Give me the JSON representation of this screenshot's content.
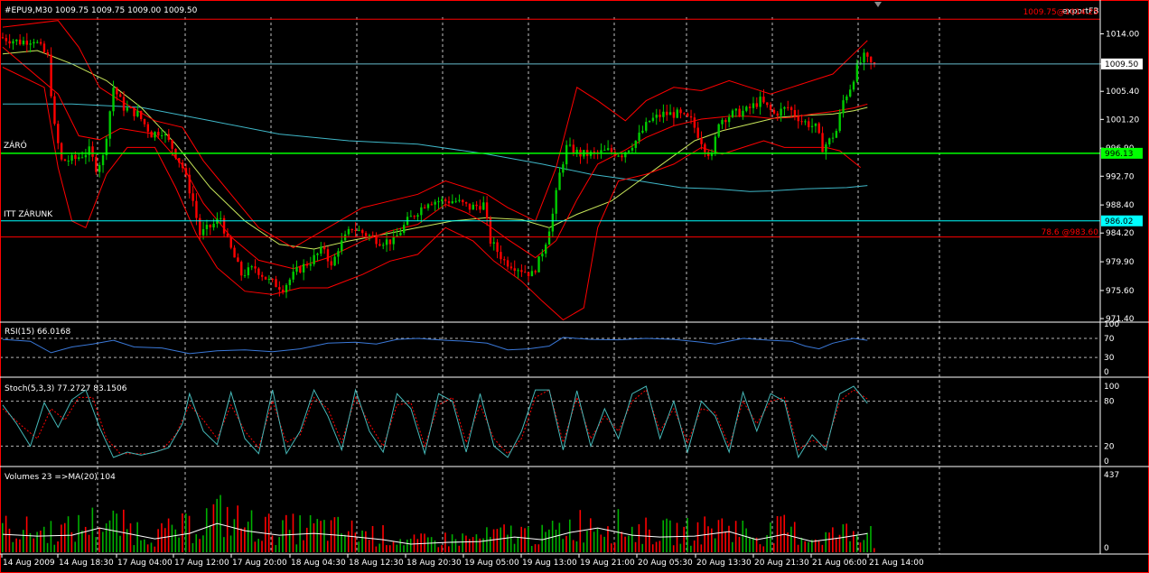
{
  "window": {
    "bg": "#000000",
    "frame": "#ff0000"
  },
  "colors": {
    "bull": "#00cc00",
    "bear": "#ff0000",
    "bb": "#ff0000",
    "ma_short": "#c8e65a",
    "ma_long": "#3fb7c8",
    "rsi": "#3a78d8",
    "stoch_main": "#45b8b8",
    "stoch_signal": "#ff0000",
    "vol_up": "#00b000",
    "vol_down": "#ff0000",
    "vol_ma": "#ffffff",
    "grid": "#ffffff",
    "axis_text": "#ffffff",
    "zaro_line": "#00ff00",
    "itt_line": "#00ffff",
    "fib_line": "#ff0000",
    "price_line": "#66bbcc",
    "top_line": "#ff0000"
  },
  "header": {
    "text": "#EPU9,M30  1009.75 1009.75 1009.00 1009.50"
  },
  "expert_label": "exportFB",
  "top_right_label": "1009.75@1014.25",
  "price_axis": {
    "ticks": [
      "1014.00",
      "1009.50",
      "1005.40",
      "1001.20",
      "996.90",
      "992.70",
      "988.40",
      "984.20",
      "979.90",
      "975.60",
      "971.40"
    ],
    "tick_values": [
      1014.0,
      1009.5,
      1005.4,
      1001.2,
      996.9,
      992.7,
      988.4,
      984.2,
      979.9,
      975.6,
      971.4
    ],
    "range": [
      971.0,
      1016.5
    ]
  },
  "current_price": {
    "label": "1009.50",
    "value": 1009.5
  },
  "levels": [
    {
      "id": "zaro",
      "name": "ZÁRÓ",
      "value": 996.13,
      "label": "996.13",
      "color": "#00ff00"
    },
    {
      "id": "itt",
      "name": "ITT ZÁRUNK",
      "value": 986.02,
      "label": "986.02",
      "color": "#00ffff"
    },
    {
      "id": "fib786",
      "name": "",
      "value": 983.6,
      "label": "78.6 @983.60",
      "color": "#ff0000"
    },
    {
      "id": "top",
      "name": "",
      "value": 1016.2,
      "label": "",
      "color": "#ff0000"
    }
  ],
  "time_labels": [
    "14 Aug 2009",
    "14 Aug 18:30",
    "17 Aug 04:00",
    "17 Aug 12:00",
    "17 Aug 20:00",
    "18 Aug 04:30",
    "18 Aug 12:30",
    "18 Aug 20:30",
    "19 Aug 05:00",
    "19 Aug 13:00",
    "19 Aug 21:00",
    "20 Aug 05:30",
    "20 Aug 13:30",
    "20 Aug 21:30",
    "21 Aug 06:00",
    "21 Aug 14:00"
  ],
  "rsi": {
    "label": "RSI(15) 66.0168",
    "levels": [
      "100",
      "70",
      "30",
      "0"
    ],
    "level_values": [
      100,
      70,
      30,
      0
    ],
    "last": 66.0168
  },
  "stoch": {
    "label": "Stoch(5,3,3) 77.2727 83.1506",
    "levels": [
      "100",
      "80",
      "20",
      "0"
    ],
    "level_values": [
      100,
      80,
      20,
      0
    ],
    "main_last": 77.2727,
    "signal_last": 83.1506
  },
  "volume": {
    "label": "Volumes 23  =>MA(20) 104",
    "max_label": "437",
    "zero_label": "0",
    "max": 437,
    "last": 23,
    "ma_last": 104
  },
  "chart_data": {
    "type": "candlestick",
    "symbol": "#EPU9",
    "timeframe": "M30",
    "last_bar": {
      "open": 1009.75,
      "high": 1009.75,
      "low": 1009.0,
      "close": 1009.5
    },
    "close_path": [
      [
        0,
        1013.5
      ],
      [
        6,
        1012.8
      ],
      [
        10,
        1013.2
      ],
      [
        14,
        1010.5
      ],
      [
        16,
        1000
      ],
      [
        18,
        995
      ],
      [
        22,
        995.3
      ],
      [
        26,
        996.5
      ],
      [
        28,
        994
      ],
      [
        30,
        995.5
      ],
      [
        33,
        1006
      ],
      [
        36,
        1003
      ],
      [
        40,
        1002
      ],
      [
        44,
        999
      ],
      [
        47,
        999.5
      ],
      [
        50,
        997
      ],
      [
        53,
        994
      ],
      [
        56,
        989
      ],
      [
        58,
        984
      ],
      [
        62,
        985.5
      ],
      [
        64,
        986.5
      ],
      [
        66,
        983
      ],
      [
        70,
        978
      ],
      [
        74,
        979
      ],
      [
        78,
        977
      ],
      [
        82,
        976
      ],
      [
        86,
        978.5
      ],
      [
        90,
        980
      ],
      [
        94,
        982
      ],
      [
        96,
        979
      ],
      [
        98,
        982
      ],
      [
        102,
        985
      ],
      [
        106,
        984
      ],
      [
        110,
        983
      ],
      [
        114,
        983
      ],
      [
        118,
        986
      ],
      [
        120,
        987
      ],
      [
        124,
        989
      ],
      [
        128,
        989
      ],
      [
        132,
        989
      ],
      [
        136,
        988
      ],
      [
        140,
        988.5
      ],
      [
        142,
        983
      ],
      [
        146,
        980
      ],
      [
        150,
        979
      ],
      [
        154,
        978
      ],
      [
        156,
        980
      ],
      [
        158,
        983
      ],
      [
        160,
        987
      ],
      [
        162,
        993
      ],
      [
        164,
        997
      ],
      [
        168,
        996
      ],
      [
        172,
        996
      ],
      [
        176,
        996.5
      ],
      [
        180,
        996
      ],
      [
        184,
        998
      ],
      [
        188,
        1001
      ],
      [
        192,
        1002
      ],
      [
        196,
        1002
      ],
      [
        200,
        1001
      ],
      [
        204,
        997
      ],
      [
        206,
        995.5
      ],
      [
        208,
        1001
      ],
      [
        212,
        1002
      ],
      [
        216,
        1002.5
      ],
      [
        220,
        1004
      ],
      [
        224,
        1002
      ],
      [
        228,
        1003
      ],
      [
        232,
        1001
      ],
      [
        236,
        1000
      ],
      [
        238,
        997
      ],
      [
        240,
        998
      ],
      [
        242,
        999.5
      ],
      [
        244,
        1004
      ],
      [
        246,
        1006
      ],
      [
        248,
        1009
      ],
      [
        250,
        1010.5
      ],
      [
        252,
        1009.5
      ]
    ],
    "bars_count": 253,
    "bollinger_upper": [
      [
        0,
        1015
      ],
      [
        16,
        1016
      ],
      [
        22,
        1012
      ],
      [
        28,
        1006
      ],
      [
        34,
        1004
      ],
      [
        44,
        1001
      ],
      [
        52,
        1000
      ],
      [
        58,
        995
      ],
      [
        66,
        990
      ],
      [
        74,
        985
      ],
      [
        84,
        982
      ],
      [
        94,
        985
      ],
      [
        104,
        988
      ],
      [
        112,
        989
      ],
      [
        120,
        990
      ],
      [
        128,
        992
      ],
      [
        134,
        991
      ],
      [
        140,
        990
      ],
      [
        146,
        988
      ],
      [
        154,
        986
      ],
      [
        160,
        994
      ],
      [
        166,
        1006
      ],
      [
        172,
        1004
      ],
      [
        180,
        1001
      ],
      [
        186,
        1004
      ],
      [
        194,
        1006
      ],
      [
        202,
        1005.5
      ],
      [
        210,
        1007
      ],
      [
        216,
        1006
      ],
      [
        222,
        1005
      ],
      [
        228,
        1006
      ],
      [
        234,
        1007
      ],
      [
        240,
        1008
      ],
      [
        246,
        1011
      ],
      [
        250,
        1013
      ]
    ],
    "bollinger_lower": [
      [
        0,
        1009
      ],
      [
        12,
        1006
      ],
      [
        16,
        994
      ],
      [
        20,
        986
      ],
      [
        24,
        985
      ],
      [
        30,
        993
      ],
      [
        36,
        997
      ],
      [
        44,
        997
      ],
      [
        50,
        991
      ],
      [
        56,
        984
      ],
      [
        62,
        979
      ],
      [
        70,
        975.5
      ],
      [
        78,
        975
      ],
      [
        86,
        976
      ],
      [
        94,
        976
      ],
      [
        104,
        978
      ],
      [
        112,
        980
      ],
      [
        120,
        981
      ],
      [
        128,
        985
      ],
      [
        136,
        983
      ],
      [
        142,
        980
      ],
      [
        150,
        977
      ],
      [
        156,
        974
      ],
      [
        162,
        971.2
      ],
      [
        168,
        973
      ],
      [
        172,
        985
      ],
      [
        178,
        992
      ],
      [
        186,
        993
      ],
      [
        194,
        994.5
      ],
      [
        202,
        997
      ],
      [
        208,
        996
      ],
      [
        214,
        997
      ],
      [
        220,
        998
      ],
      [
        226,
        997
      ],
      [
        232,
        997
      ],
      [
        238,
        997
      ],
      [
        242,
        996.5
      ],
      [
        248,
        994
      ]
    ],
    "ma_short": [
      [
        0,
        1011
      ],
      [
        10,
        1011.5
      ],
      [
        20,
        1009.5
      ],
      [
        30,
        1007
      ],
      [
        40,
        1003
      ],
      [
        50,
        997.5
      ],
      [
        60,
        991
      ],
      [
        70,
        986
      ],
      [
        80,
        982.5
      ],
      [
        90,
        981.8
      ],
      [
        100,
        983
      ],
      [
        110,
        984
      ],
      [
        120,
        985
      ],
      [
        130,
        986
      ],
      [
        140,
        986.5
      ],
      [
        150,
        986.2
      ],
      [
        158,
        985
      ],
      [
        166,
        987
      ],
      [
        176,
        989
      ],
      [
        184,
        992
      ],
      [
        192,
        995
      ],
      [
        200,
        998
      ],
      [
        208,
        999.5
      ],
      [
        216,
        1000.5
      ],
      [
        224,
        1001.5
      ],
      [
        232,
        1001.8
      ],
      [
        240,
        1002
      ],
      [
        246,
        1002.5
      ],
      [
        250,
        1003
      ]
    ],
    "ma_long": [
      [
        0,
        1003.5
      ],
      [
        20,
        1003.5
      ],
      [
        40,
        1003
      ],
      [
        60,
        1001
      ],
      [
        80,
        999
      ],
      [
        100,
        998
      ],
      [
        120,
        997.5
      ],
      [
        140,
        996
      ],
      [
        156,
        994.5
      ],
      [
        170,
        993
      ],
      [
        184,
        992
      ],
      [
        196,
        991
      ],
      [
        206,
        990.8
      ],
      [
        216,
        990.4
      ],
      [
        222,
        990.5
      ],
      [
        232,
        990.8
      ],
      [
        244,
        991
      ],
      [
        250,
        991.3
      ]
    ],
    "rsi_path": [
      [
        0,
        68
      ],
      [
        8,
        64
      ],
      [
        14,
        40
      ],
      [
        20,
        52
      ],
      [
        26,
        58
      ],
      [
        32,
        66
      ],
      [
        38,
        52
      ],
      [
        46,
        50
      ],
      [
        54,
        38
      ],
      [
        62,
        44
      ],
      [
        70,
        46
      ],
      [
        78,
        42
      ],
      [
        86,
        48
      ],
      [
        94,
        60
      ],
      [
        102,
        62
      ],
      [
        108,
        58
      ],
      [
        114,
        68
      ],
      [
        120,
        70
      ],
      [
        128,
        66
      ],
      [
        134,
        64
      ],
      [
        140,
        60
      ],
      [
        146,
        46
      ],
      [
        152,
        48
      ],
      [
        158,
        54
      ],
      [
        162,
        72
      ],
      [
        170,
        68
      ],
      [
        178,
        67
      ],
      [
        186,
        70
      ],
      [
        194,
        68
      ],
      [
        202,
        62
      ],
      [
        206,
        58
      ],
      [
        214,
        70
      ],
      [
        222,
        66
      ],
      [
        228,
        64
      ],
      [
        232,
        54
      ],
      [
        236,
        48
      ],
      [
        240,
        60
      ],
      [
        246,
        70
      ],
      [
        250,
        66
      ]
    ],
    "stoch_main_path": [
      [
        0,
        75
      ],
      [
        4,
        50
      ],
      [
        8,
        20
      ],
      [
        12,
        78
      ],
      [
        16,
        45
      ],
      [
        20,
        82
      ],
      [
        24,
        95
      ],
      [
        28,
        45
      ],
      [
        32,
        5
      ],
      [
        36,
        12
      ],
      [
        40,
        8
      ],
      [
        44,
        12
      ],
      [
        48,
        18
      ],
      [
        52,
        50
      ],
      [
        54,
        90
      ],
      [
        58,
        40
      ],
      [
        62,
        22
      ],
      [
        66,
        92
      ],
      [
        70,
        30
      ],
      [
        74,
        10
      ],
      [
        78,
        95
      ],
      [
        82,
        10
      ],
      [
        86,
        40
      ],
      [
        90,
        95
      ],
      [
        94,
        60
      ],
      [
        98,
        15
      ],
      [
        102,
        95
      ],
      [
        106,
        40
      ],
      [
        110,
        12
      ],
      [
        114,
        90
      ],
      [
        118,
        70
      ],
      [
        122,
        10
      ],
      [
        126,
        90
      ],
      [
        130,
        80
      ],
      [
        134,
        12
      ],
      [
        138,
        90
      ],
      [
        142,
        20
      ],
      [
        146,
        5
      ],
      [
        150,
        40
      ],
      [
        154,
        95
      ],
      [
        158,
        95
      ],
      [
        162,
        15
      ],
      [
        166,
        94
      ],
      [
        170,
        20
      ],
      [
        174,
        70
      ],
      [
        178,
        30
      ],
      [
        182,
        90
      ],
      [
        186,
        100
      ],
      [
        190,
        30
      ],
      [
        194,
        80
      ],
      [
        198,
        12
      ],
      [
        202,
        80
      ],
      [
        206,
        60
      ],
      [
        210,
        12
      ],
      [
        214,
        92
      ],
      [
        218,
        40
      ],
      [
        222,
        90
      ],
      [
        226,
        80
      ],
      [
        230,
        5
      ],
      [
        234,
        35
      ],
      [
        238,
        15
      ],
      [
        242,
        90
      ],
      [
        246,
        100
      ],
      [
        250,
        77
      ]
    ],
    "stoch_signal_path": [
      [
        0,
        70
      ],
      [
        6,
        45
      ],
      [
        10,
        30
      ],
      [
        14,
        70
      ],
      [
        18,
        55
      ],
      [
        22,
        85
      ],
      [
        26,
        85
      ],
      [
        30,
        30
      ],
      [
        34,
        10
      ],
      [
        38,
        10
      ],
      [
        42,
        10
      ],
      [
        46,
        15
      ],
      [
        50,
        35
      ],
      [
        54,
        75
      ],
      [
        58,
        55
      ],
      [
        62,
        30
      ],
      [
        66,
        75
      ],
      [
        70,
        40
      ],
      [
        74,
        18
      ],
      [
        78,
        80
      ],
      [
        82,
        25
      ],
      [
        86,
        35
      ],
      [
        90,
        85
      ],
      [
        94,
        70
      ],
      [
        98,
        25
      ],
      [
        102,
        85
      ],
      [
        106,
        50
      ],
      [
        110,
        20
      ],
      [
        114,
        75
      ],
      [
        118,
        78
      ],
      [
        122,
        20
      ],
      [
        126,
        75
      ],
      [
        130,
        85
      ],
      [
        134,
        25
      ],
      [
        138,
        75
      ],
      [
        142,
        30
      ],
      [
        146,
        10
      ],
      [
        150,
        30
      ],
      [
        154,
        85
      ],
      [
        158,
        95
      ],
      [
        162,
        25
      ],
      [
        166,
        85
      ],
      [
        170,
        30
      ],
      [
        174,
        60
      ],
      [
        178,
        40
      ],
      [
        182,
        80
      ],
      [
        186,
        95
      ],
      [
        190,
        40
      ],
      [
        194,
        70
      ],
      [
        198,
        25
      ],
      [
        202,
        70
      ],
      [
        206,
        65
      ],
      [
        210,
        20
      ],
      [
        214,
        80
      ],
      [
        218,
        50
      ],
      [
        222,
        80
      ],
      [
        226,
        85
      ],
      [
        230,
        15
      ],
      [
        234,
        28
      ],
      [
        238,
        20
      ],
      [
        242,
        80
      ],
      [
        246,
        95
      ],
      [
        250,
        83
      ]
    ],
    "volume_ma_path": [
      [
        0,
        100
      ],
      [
        10,
        90
      ],
      [
        20,
        95
      ],
      [
        28,
        135
      ],
      [
        36,
        105
      ],
      [
        44,
        75
      ],
      [
        54,
        105
      ],
      [
        62,
        160
      ],
      [
        70,
        120
      ],
      [
        80,
        95
      ],
      [
        90,
        105
      ],
      [
        100,
        90
      ],
      [
        110,
        70
      ],
      [
        118,
        45
      ],
      [
        128,
        55
      ],
      [
        138,
        60
      ],
      [
        148,
        85
      ],
      [
        156,
        70
      ],
      [
        164,
        110
      ],
      [
        172,
        135
      ],
      [
        182,
        95
      ],
      [
        190,
        85
      ],
      [
        200,
        90
      ],
      [
        210,
        115
      ],
      [
        218,
        70
      ],
      [
        226,
        100
      ],
      [
        234,
        60
      ],
      [
        242,
        80
      ],
      [
        250,
        104
      ]
    ]
  }
}
